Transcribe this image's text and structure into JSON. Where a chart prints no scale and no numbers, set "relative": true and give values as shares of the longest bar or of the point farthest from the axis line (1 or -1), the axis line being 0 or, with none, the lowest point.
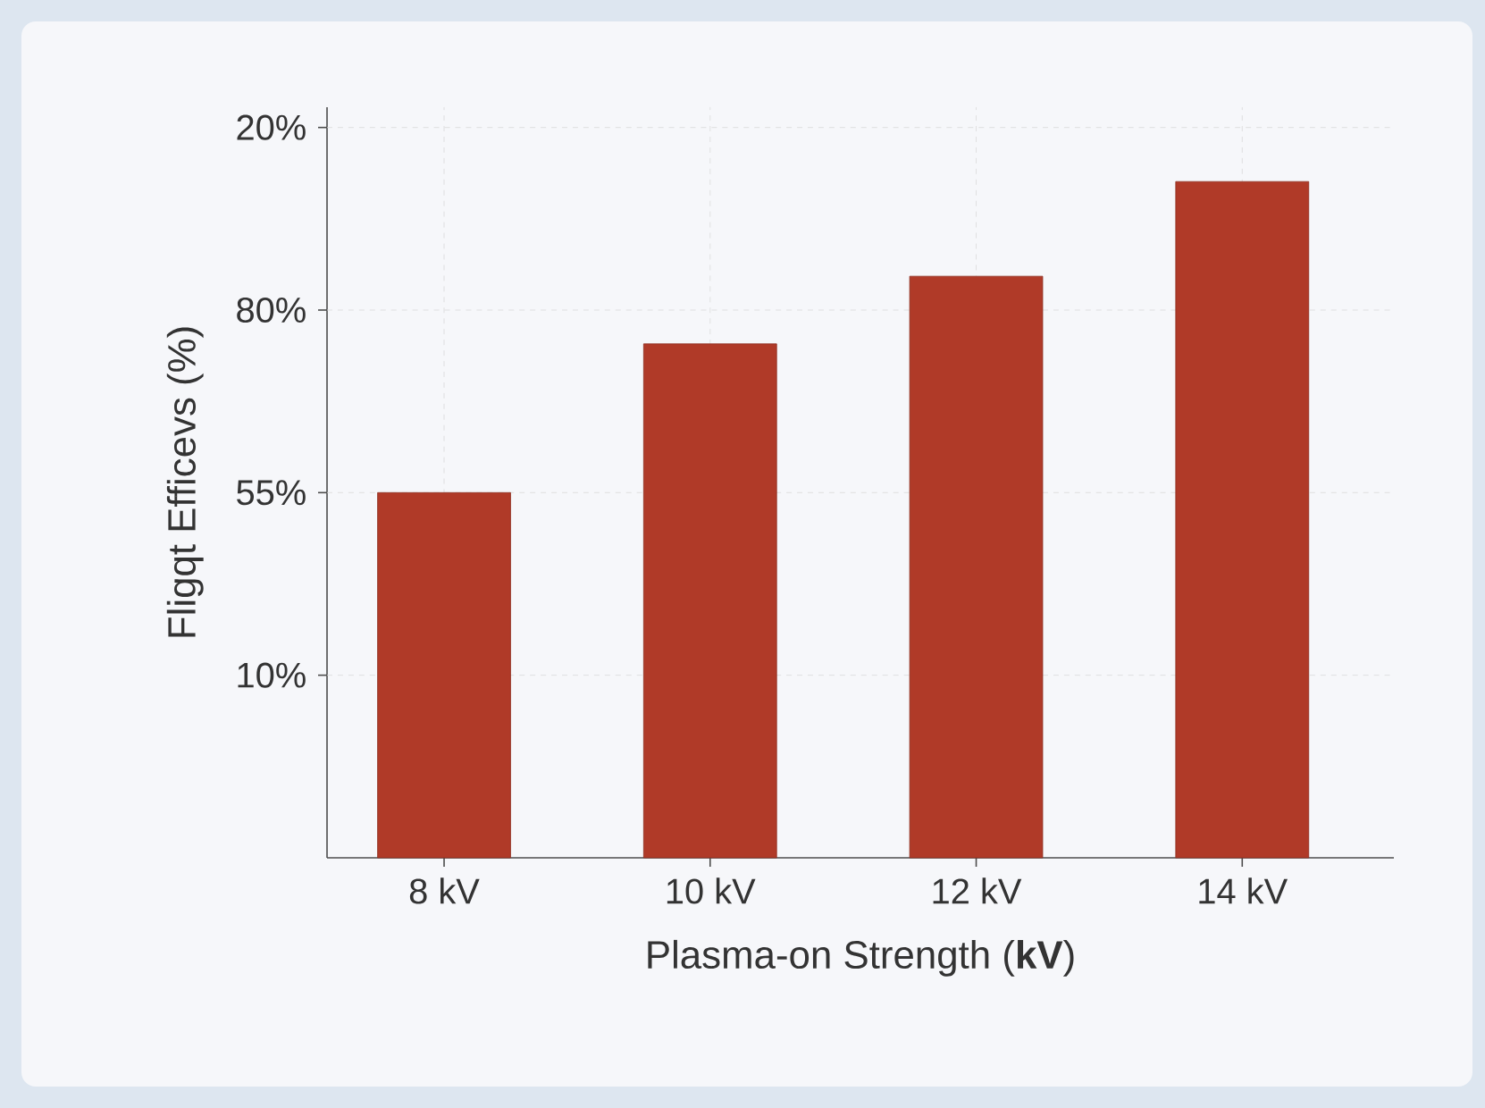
{
  "chart_data": {
    "type": "bar",
    "xlabel": "Plasma-on Strength (**kV**)",
    "ylabel": "Fligqt Efficevs (%)",
    "categories": [
      "8 kV",
      "10 kV",
      "12 kV",
      "14 kV"
    ],
    "values": [
      0.54,
      0.76,
      0.86,
      1
    ],
    "relative": true,
    "color": "#b03a28",
    "annotations": [
      "20%",
      "80%",
      "55%",
      "10%"
    ],
    "grid": true
  }
}
